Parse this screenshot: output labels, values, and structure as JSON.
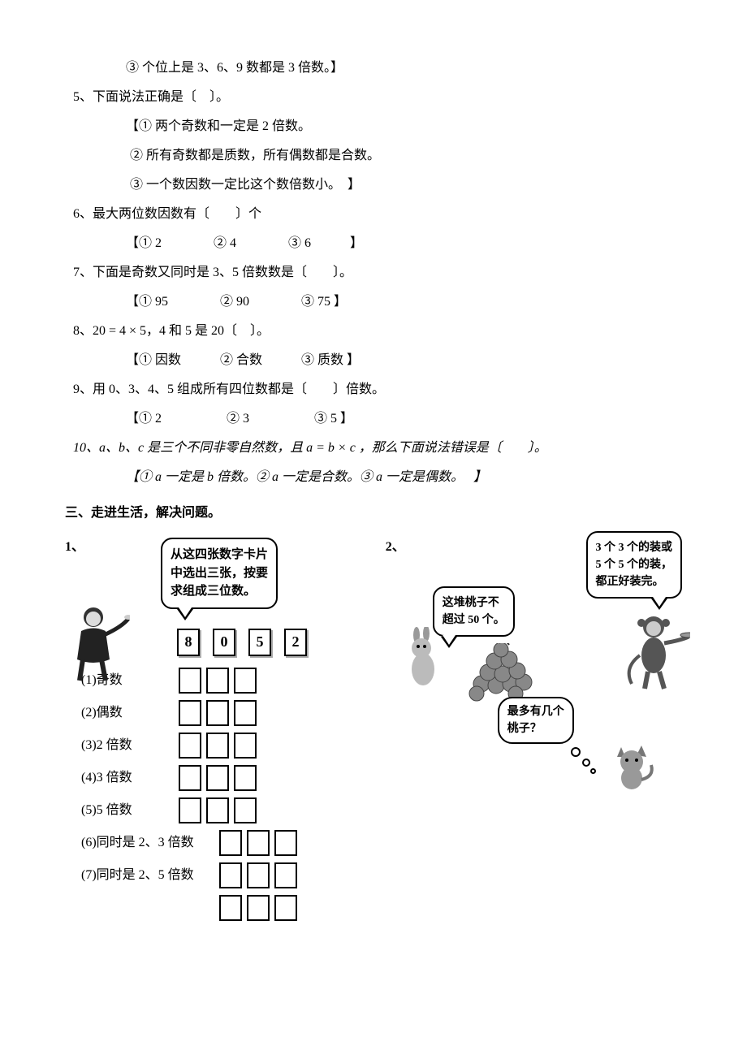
{
  "q3_opt3": "③ 个位上是 3、6、9 数都是 3 倍数。】",
  "q5": {
    "stem": "5、下面说法正确是〔　〕。",
    "opts": [
      "【① 两个奇数和一定是 2 倍数。",
      "② 所有奇数都是质数，所有偶数都是合数。",
      "③ 一个数因数一定比这个数倍数小。　】"
    ]
  },
  "q6": {
    "stem": "6、最大两位数因数有〔　　〕个",
    "opts_text": "【① 2　　　　② 4　　　　③ 6　　　】"
  },
  "q7": {
    "stem": "7、下面是奇数又同时是 3、5 倍数数是〔　　〕。",
    "opts_text": "【①  95　　　　②  90　　　　③  75  】"
  },
  "q8": {
    "stem": "8、20 = 4 × 5，4 和 5 是 20〔　〕。",
    "opts_text": "【①  因数　　　②  合数　　　③  质数   】"
  },
  "q9": {
    "stem": "9、用 0、3、4、5 组成所有四位数都是〔　　〕倍数。",
    "opts_text": "【① 2　　　　　② 3　　　　　③ 5  】"
  },
  "q10": {
    "stem": "10、a、b、c 是三个不同非零自然数，且 a = b × c  ，那么下面说法错误是〔　　〕。",
    "opts_text": "【①  a 一定是 b 倍数。②  a 一定是合数。③  a 一定是偶数。　  】"
  },
  "section3_title": "三、走进生活，解决问题。",
  "prob1_label": "1、",
  "prob2_label": "2、",
  "speech_left": "从这四张数字卡片\n中选出三张，按要\n求组成三位数。",
  "cards": [
    "8",
    "0",
    "5",
    "2"
  ],
  "answers": [
    "(1)奇数",
    "(2)偶数",
    "(3)2 倍数",
    "(4)3 倍数",
    "(5)5 倍数",
    "(6)同时是 2、3 倍数",
    "(7)同时是 2、5 倍数"
  ],
  "speech_rabbit": "这堆桃子不\n超过 50 个。",
  "speech_monkey": "3 个 3 个的装或\n5 个 5 个的装，\n都正好装完。",
  "speech_cat": "最多有几个\n桃子？"
}
